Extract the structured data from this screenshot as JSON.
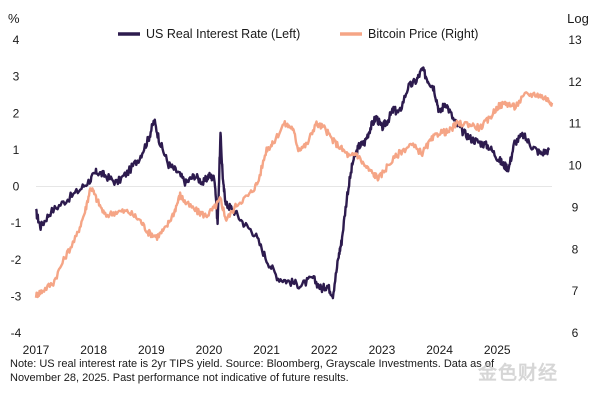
{
  "chart_data": {
    "type": "line",
    "title": "",
    "left_axis_unit": "%",
    "right_axis_unit": "Log",
    "x_range": [
      2017,
      2025.95
    ],
    "x_ticks": [
      "2017",
      "2018",
      "2019",
      "2020",
      "2021",
      "2022",
      "2023",
      "2024",
      "2025"
    ],
    "left_ylim": [
      -4,
      4
    ],
    "left_ticks": [
      "-4",
      "-3",
      "-2",
      "-1",
      "0",
      "1",
      "2",
      "3",
      "4"
    ],
    "right_ylim": [
      6,
      13
    ],
    "right_ticks": [
      "6",
      "7",
      "8",
      "9",
      "10",
      "11",
      "12",
      "13"
    ],
    "grid": false,
    "legend_position": "top",
    "series": [
      {
        "name": "US Real Interest Rate (Left)",
        "axis": "left",
        "color": "#2d1b4e",
        "x": [
          2017.0,
          2017.08,
          2017.25,
          2017.5,
          2017.75,
          2017.95,
          2018.05,
          2018.2,
          2018.4,
          2018.6,
          2018.8,
          2018.95,
          2019.05,
          2019.15,
          2019.3,
          2019.45,
          2019.6,
          2019.75,
          2019.9,
          2020.0,
          2020.1,
          2020.15,
          2020.2,
          2020.25,
          2020.3,
          2020.4,
          2020.6,
          2020.8,
          2021.0,
          2021.2,
          2021.4,
          2021.6,
          2021.8,
          2021.95,
          2022.05,
          2022.15,
          2022.25,
          2022.3,
          2022.4,
          2022.5,
          2022.6,
          2022.7,
          2022.8,
          2022.9,
          2023.0,
          2023.1,
          2023.2,
          2023.3,
          2023.45,
          2023.6,
          2023.7,
          2023.8,
          2023.9,
          2024.0,
          2024.1,
          2024.25,
          2024.4,
          2024.55,
          2024.7,
          2024.85,
          2025.0,
          2025.1,
          2025.2,
          2025.3,
          2025.45,
          2025.6,
          2025.75,
          2025.9
        ],
        "values": [
          -0.7,
          -1.1,
          -0.7,
          -0.4,
          -0.1,
          0.2,
          0.4,
          0.3,
          0.1,
          0.4,
          0.8,
          1.3,
          1.8,
          1.2,
          0.6,
          0.4,
          0.1,
          0.3,
          0.1,
          0.3,
          0.2,
          -1.0,
          1.4,
          0.0,
          -0.5,
          -0.6,
          -1.0,
          -1.3,
          -2.0,
          -2.5,
          -2.6,
          -2.7,
          -2.5,
          -2.8,
          -2.7,
          -2.95,
          -1.9,
          -1.5,
          -0.2,
          0.7,
          1.1,
          1.2,
          1.6,
          1.9,
          1.6,
          1.8,
          2.1,
          2.0,
          2.7,
          2.9,
          3.2,
          2.9,
          2.7,
          2.0,
          2.3,
          1.8,
          1.5,
          1.3,
          1.2,
          1.1,
          0.8,
          0.6,
          0.5,
          1.2,
          1.4,
          1.1,
          0.9,
          1.0
        ]
      },
      {
        "name": "Bitcoin Price (Right)",
        "axis": "right",
        "color": "#f5a586",
        "x": [
          2017.0,
          2017.1,
          2017.3,
          2017.5,
          2017.7,
          2017.85,
          2017.95,
          2018.05,
          2018.2,
          2018.4,
          2018.6,
          2018.8,
          2018.95,
          2019.1,
          2019.25,
          2019.4,
          2019.5,
          2019.6,
          2019.8,
          2019.95,
          2020.1,
          2020.2,
          2020.3,
          2020.5,
          2020.7,
          2020.85,
          2021.0,
          2021.1,
          2021.3,
          2021.45,
          2021.55,
          2021.7,
          2021.85,
          2022.0,
          2022.15,
          2022.3,
          2022.45,
          2022.55,
          2022.7,
          2022.85,
          2022.95,
          2023.1,
          2023.3,
          2023.5,
          2023.7,
          2023.85,
          2024.0,
          2024.15,
          2024.3,
          2024.5,
          2024.7,
          2024.85,
          2025.0,
          2025.15,
          2025.3,
          2025.5,
          2025.7,
          2025.85,
          2025.95
        ],
        "values": [
          6.9,
          7.0,
          7.2,
          7.8,
          8.3,
          8.9,
          9.5,
          9.2,
          8.8,
          8.9,
          8.9,
          8.7,
          8.4,
          8.3,
          8.5,
          8.9,
          9.3,
          9.1,
          8.9,
          8.8,
          9.0,
          9.2,
          8.7,
          9.1,
          9.3,
          9.6,
          10.4,
          10.5,
          11.0,
          10.9,
          10.4,
          10.5,
          11.0,
          10.9,
          10.6,
          10.4,
          10.2,
          10.3,
          10.0,
          9.8,
          9.7,
          10.0,
          10.3,
          10.5,
          10.3,
          10.6,
          10.8,
          10.8,
          11.0,
          11.0,
          10.9,
          11.1,
          11.4,
          11.5,
          11.4,
          11.7,
          11.7,
          11.6,
          11.5
        ]
      }
    ]
  },
  "note": {
    "line1": "Note: US real interest rate is 2yr TIPS yield. Source: Bloomberg, Grayscale Investments. Data as of",
    "line2": "November 28, 2025. Past performance not indicative of future results."
  },
  "watermark": "金色财经"
}
